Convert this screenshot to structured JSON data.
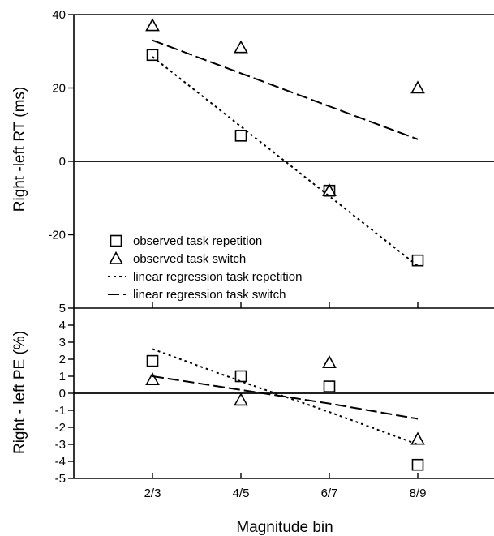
{
  "chart_data": [
    {
      "type": "scatter",
      "panel": "top",
      "categories": [
        "2/3",
        "4/5",
        "6/7",
        "8/9"
      ],
      "ylabel": "Right -left RT (ms)",
      "ylim": [
        -40,
        40
      ],
      "yticks": [
        -20,
        0,
        20,
        40
      ],
      "yticklabels": [
        "-20",
        "0",
        "20",
        "40"
      ],
      "series": [
        {
          "name": "observed task repetition",
          "kind": "marker",
          "marker": "square",
          "values": [
            29,
            7,
            -8,
            -27
          ]
        },
        {
          "name": "observed task switch",
          "kind": "marker",
          "marker": "triangle",
          "values": [
            37,
            31,
            -8,
            20
          ]
        },
        {
          "name": "linear regression task repetition",
          "kind": "line",
          "style": "dotted",
          "values": [
            28.5,
            9.5,
            -9.5,
            -28.5
          ]
        },
        {
          "name": "linear regression task switch",
          "kind": "line",
          "style": "dashed",
          "values": [
            33,
            24,
            15,
            6
          ]
        }
      ],
      "legend_position": "bottom-left"
    },
    {
      "type": "scatter",
      "panel": "bottom",
      "categories": [
        "2/3",
        "4/5",
        "6/7",
        "8/9"
      ],
      "xlabel": "Magnitude bin",
      "ylabel": "Right - left PE (%)",
      "ylim": [
        -5,
        5
      ],
      "yticks": [
        -5,
        -4,
        -3,
        -2,
        -1,
        0,
        1,
        2,
        3,
        4,
        5
      ],
      "yticklabels": [
        "-5",
        "-4",
        "-3",
        "-2",
        "-1",
        "0",
        "1",
        "2",
        "3",
        "4",
        "5"
      ],
      "series": [
        {
          "name": "observed task repetition",
          "kind": "marker",
          "marker": "square",
          "values": [
            1.9,
            1.0,
            0.4,
            -4.2
          ]
        },
        {
          "name": "observed task switch",
          "kind": "marker",
          "marker": "triangle",
          "values": [
            0.8,
            -0.4,
            1.8,
            -2.7
          ]
        },
        {
          "name": "linear regression task repetition",
          "kind": "line",
          "style": "dotted",
          "values": [
            2.6,
            0.7,
            -1.1,
            -3.0
          ]
        },
        {
          "name": "linear regression task switch",
          "kind": "line",
          "style": "dashed",
          "values": [
            1.0,
            0.2,
            -0.6,
            -1.5
          ]
        }
      ]
    }
  ]
}
